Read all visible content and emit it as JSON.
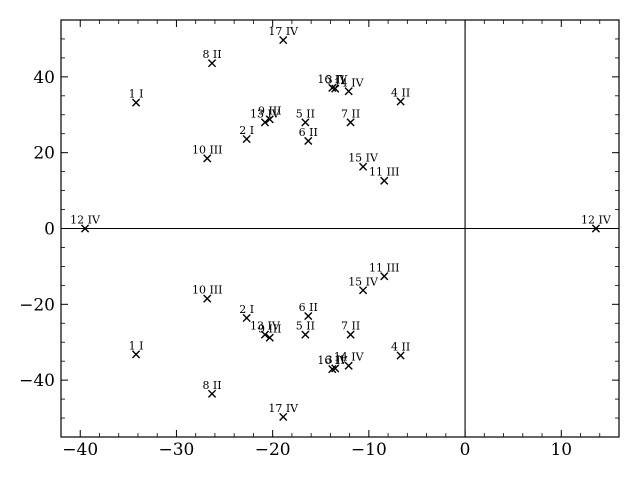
{
  "chart_data": {
    "type": "scatter",
    "title": "",
    "xlabel": "",
    "ylabel": "",
    "xlim": [
      -42,
      16
    ],
    "ylim": [
      -55,
      55
    ],
    "xticks": [
      -40,
      -30,
      -20,
      -10,
      0,
      10
    ],
    "yticks": [
      -40,
      -20,
      0,
      20,
      40
    ],
    "xtick_labels": [
      "−40",
      "−30",
      "−20",
      "−10",
      "0",
      "10"
    ],
    "ytick_labels": [
      "−40",
      "−20",
      "0",
      "20",
      "40"
    ],
    "grid": false,
    "reference_lines": {
      "x": 0,
      "y": 0
    },
    "marker": "x",
    "points": [
      {
        "label": "1 I",
        "x": -34.2,
        "y": 33.2
      },
      {
        "label": "2 I",
        "x": -22.7,
        "y": 23.6
      },
      {
        "label": "3 II",
        "x": -13.5,
        "y": 36.9
      },
      {
        "label": "4 II",
        "x": -6.7,
        "y": 33.5
      },
      {
        "label": "5 II",
        "x": -16.6,
        "y": 28.0
      },
      {
        "label": "6 II",
        "x": -16.3,
        "y": 23.1
      },
      {
        "label": "7 II",
        "x": -11.9,
        "y": 28.0
      },
      {
        "label": "8 II",
        "x": -26.3,
        "y": 43.6
      },
      {
        "label": "9 III",
        "x": -20.3,
        "y": 28.8
      },
      {
        "label": "10 III",
        "x": -26.8,
        "y": 18.5
      },
      {
        "label": "11 III",
        "x": -8.4,
        "y": 12.6
      },
      {
        "label": "12 IV",
        "x": -39.5,
        "y": 0.0
      },
      {
        "label": "12 IV",
        "x": 13.6,
        "y": 0.0
      },
      {
        "label": "13 IV",
        "x": -20.8,
        "y": 28.0
      },
      {
        "label": "14 IV",
        "x": -12.1,
        "y": 36.2
      },
      {
        "label": "15 IV",
        "x": -10.6,
        "y": 16.3
      },
      {
        "label": "16 IV",
        "x": -13.8,
        "y": 37.1
      },
      {
        "label": "17 IV",
        "x": -18.9,
        "y": 49.7
      },
      {
        "label": "1 I",
        "x": -34.2,
        "y": -33.2
      },
      {
        "label": "2 I",
        "x": -22.7,
        "y": -23.6
      },
      {
        "label": "3 II",
        "x": -13.5,
        "y": -36.9
      },
      {
        "label": "4 II",
        "x": -6.7,
        "y": -33.5
      },
      {
        "label": "5 II",
        "x": -16.6,
        "y": -28.0
      },
      {
        "label": "6 II",
        "x": -16.3,
        "y": -23.1
      },
      {
        "label": "7 II",
        "x": -11.9,
        "y": -28.0
      },
      {
        "label": "8 II",
        "x": -26.3,
        "y": -43.6
      },
      {
        "label": "9 III",
        "x": -20.3,
        "y": -28.8
      },
      {
        "label": "10 III",
        "x": -26.8,
        "y": -18.5
      },
      {
        "label": "11 III",
        "x": -8.4,
        "y": -12.6
      },
      {
        "label": "13 IV",
        "x": -20.8,
        "y": -28.0
      },
      {
        "label": "14 IV",
        "x": -12.1,
        "y": -36.2
      },
      {
        "label": "15 IV",
        "x": -10.6,
        "y": -16.3
      },
      {
        "label": "16 IV",
        "x": -13.8,
        "y": -37.1
      },
      {
        "label": "17 IV",
        "x": -18.9,
        "y": -49.7
      }
    ]
  }
}
